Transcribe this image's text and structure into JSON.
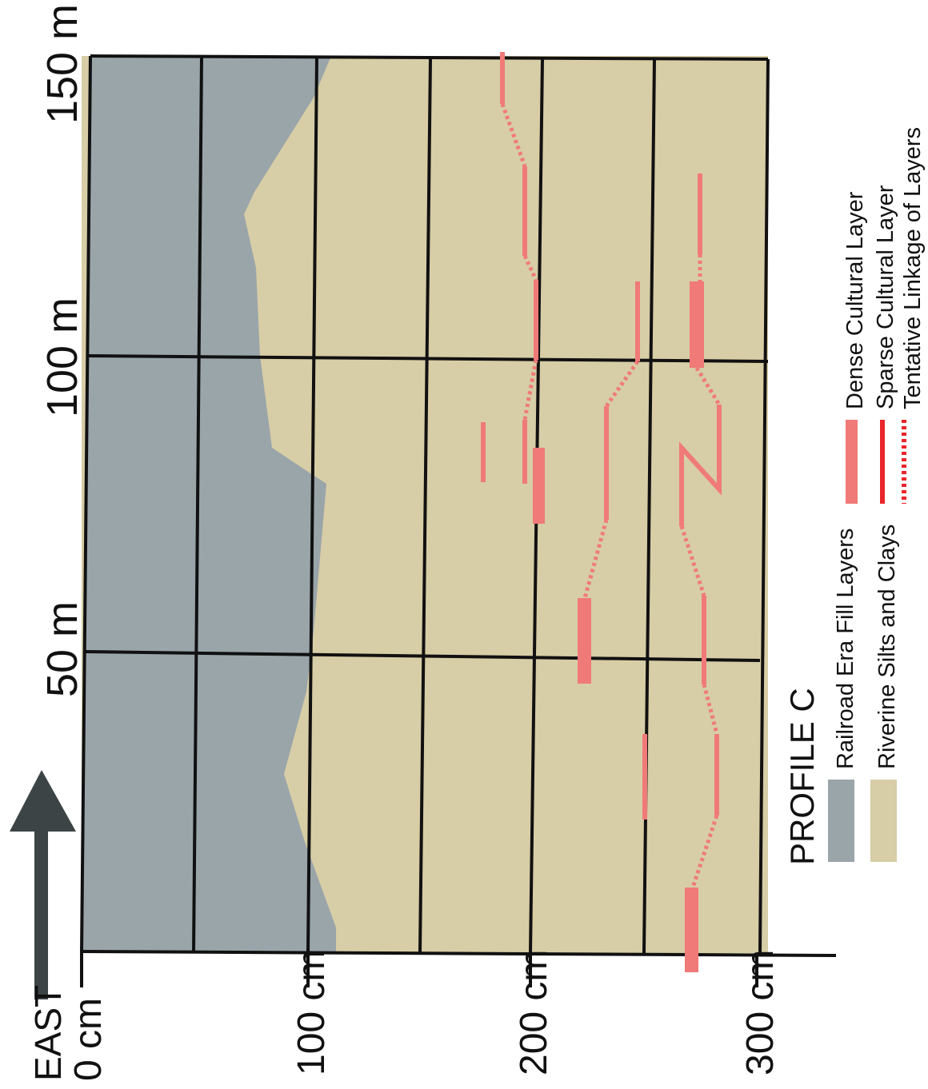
{
  "title": "PROFILE C",
  "direction_label": "EAST",
  "distance_labels": [
    "50 m",
    "100 m",
    "150 m"
  ],
  "depth_labels": [
    "0 cm",
    "100 cm",
    "200 cm",
    "300 cm"
  ],
  "legend": {
    "fill": "Railroad Era Fill Layers",
    "silts": "Riverine Silts and Clays",
    "dense": "Dense Cultural Layer",
    "sparse": "Sparse Cultural Layer",
    "tentative": "Tentative Linkage of Layers"
  },
  "colors": {
    "fill": "#9aa5aa",
    "silts": "#d7cda6",
    "cultural": "#f07a78",
    "grid": "#111111",
    "arrow": "#3d4446"
  },
  "icons": {
    "direction": "north-arrow-icon"
  }
}
